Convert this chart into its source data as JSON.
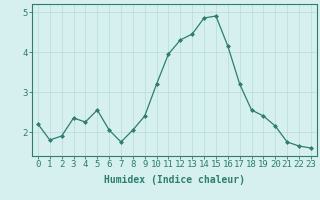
{
  "x": [
    0,
    1,
    2,
    3,
    4,
    5,
    6,
    7,
    8,
    9,
    10,
    11,
    12,
    13,
    14,
    15,
    16,
    17,
    18,
    19,
    20,
    21,
    22,
    23
  ],
  "y": [
    2.2,
    1.8,
    1.9,
    2.35,
    2.25,
    2.55,
    2.05,
    1.75,
    2.05,
    2.4,
    3.2,
    3.95,
    4.3,
    4.45,
    4.85,
    4.9,
    4.15,
    3.2,
    2.55,
    2.4,
    2.15,
    1.75,
    1.65,
    1.6
  ],
  "line_color": "#2e7d6e",
  "marker": "D",
  "marker_size": 2.0,
  "bg_color": "#d6f0f0",
  "grid_color": "#b8dada",
  "xlabel": "Humidex (Indice chaleur)",
  "ylim": [
    1.4,
    5.2
  ],
  "xlim": [
    -0.5,
    23.5
  ],
  "yticks": [
    2,
    3,
    4,
    5
  ],
  "xtick_labels": [
    "0",
    "1",
    "2",
    "3",
    "4",
    "5",
    "6",
    "7",
    "8",
    "9",
    "10",
    "11",
    "12",
    "13",
    "14",
    "15",
    "16",
    "17",
    "18",
    "19",
    "20",
    "21",
    "22",
    "23"
  ],
  "xlabel_fontsize": 7,
  "tick_fontsize": 6.5,
  "linewidth": 0.9
}
